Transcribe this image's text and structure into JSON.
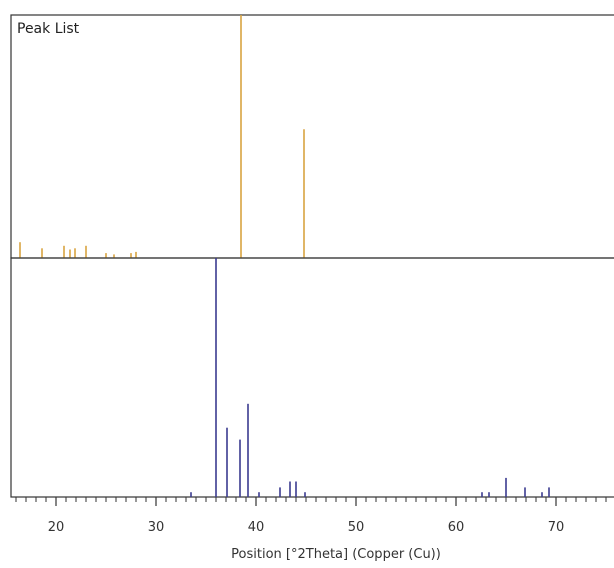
{
  "chart_data": {
    "type": "stick",
    "xlabel": "Position [°2Theta] (Copper (Cu))",
    "xlim": [
      15.5,
      76.5
    ],
    "x_ticks": [
      20,
      30,
      40,
      50,
      60,
      70
    ],
    "colors": {
      "top": "#d9a441",
      "bottom": "#3b3b8f"
    },
    "panels": [
      {
        "title": "Peak List",
        "ylim": [
          0,
          100
        ],
        "peaks": [
          {
            "x": 16.4,
            "y": 6.5
          },
          {
            "x": 18.6,
            "y": 4
          },
          {
            "x": 20.8,
            "y": 5
          },
          {
            "x": 21.4,
            "y": 3.5
          },
          {
            "x": 21.9,
            "y": 4
          },
          {
            "x": 23.0,
            "y": 5
          },
          {
            "x": 25.0,
            "y": 2
          },
          {
            "x": 25.8,
            "y": 1.5
          },
          {
            "x": 27.5,
            "y": 2
          },
          {
            "x": 28.0,
            "y": 2.5
          },
          {
            "x": 38.5,
            "y": 100
          },
          {
            "x": 44.8,
            "y": 53
          }
        ]
      },
      {
        "title": "",
        "ylim": [
          0,
          100
        ],
        "peaks": [
          {
            "x": 33.5,
            "y": 2
          },
          {
            "x": 36.0,
            "y": 100
          },
          {
            "x": 37.1,
            "y": 29
          },
          {
            "x": 38.4,
            "y": 24
          },
          {
            "x": 39.2,
            "y": 39
          },
          {
            "x": 40.3,
            "y": 2
          },
          {
            "x": 42.4,
            "y": 4
          },
          {
            "x": 43.4,
            "y": 6.5
          },
          {
            "x": 44.0,
            "y": 6.5
          },
          {
            "x": 44.9,
            "y": 2
          },
          {
            "x": 62.6,
            "y": 2
          },
          {
            "x": 63.3,
            "y": 2
          },
          {
            "x": 65.0,
            "y": 8
          },
          {
            "x": 66.9,
            "y": 4
          },
          {
            "x": 68.6,
            "y": 2
          },
          {
            "x": 69.3,
            "y": 4
          }
        ]
      }
    ]
  }
}
